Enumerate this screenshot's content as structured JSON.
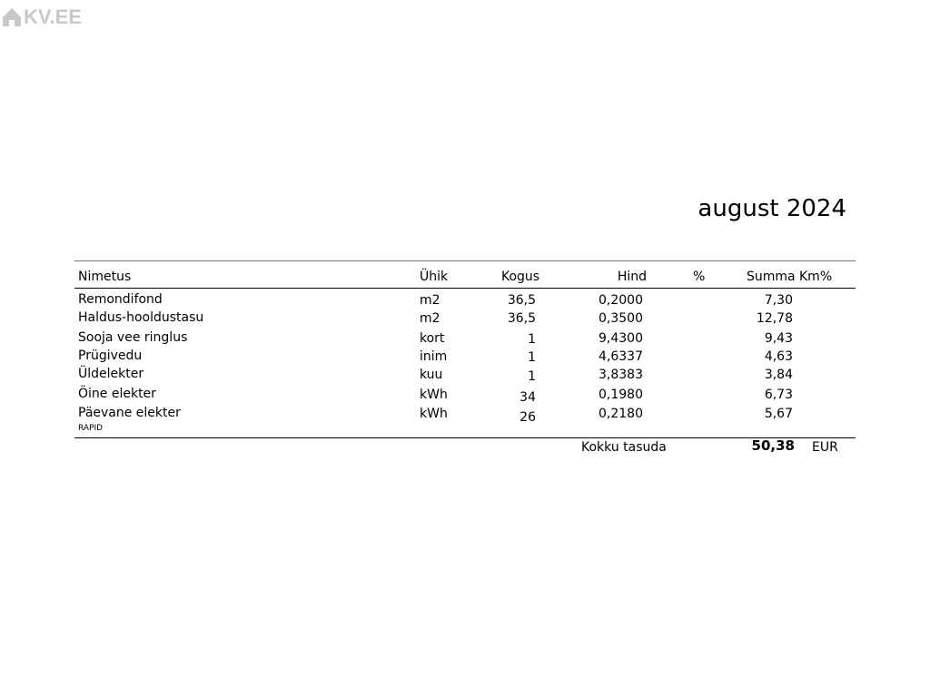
{
  "logo": {
    "text": "KV.EE",
    "icon": "house-icon"
  },
  "title": "august 2024",
  "headers": {
    "name": "Nimetus",
    "unit": "Ühik",
    "qty": "Kogus",
    "price": "Hind",
    "pct": "%",
    "sum": "Summa",
    "vat": "Km%"
  },
  "rows": [
    {
      "name": "Remondifond",
      "unit": "m2",
      "qty": "36,5",
      "price": "0,2000",
      "sum": "7,30"
    },
    {
      "name": "Haldus-hooldustasu",
      "unit": "m2",
      "qty": "36,5",
      "price": "0,3500",
      "sum": "12,78"
    },
    {
      "name": "Sooja vee ringlus",
      "unit": "kort",
      "qty": "1",
      "price": "9,4300",
      "sum": "9,43"
    },
    {
      "name": "Prügivedu",
      "unit": "inim",
      "qty": "1",
      "price": "4,6337",
      "sum": "4,63"
    },
    {
      "name": "Üldelekter",
      "unit": "kuu",
      "qty": "1",
      "price": "3,8383",
      "sum": "3,84"
    },
    {
      "name": "Öine elekter",
      "unit": "kWh",
      "qty": "34",
      "price": "0,1980",
      "sum": "6,73"
    },
    {
      "name": "Päevane elekter",
      "unit": "kWh",
      "qty": "26",
      "price": "0,2180",
      "sum": "5,67"
    }
  ],
  "note": "RAPID",
  "total": {
    "label": "Kokku tasuda",
    "value": "50,38",
    "currency": "EUR"
  }
}
